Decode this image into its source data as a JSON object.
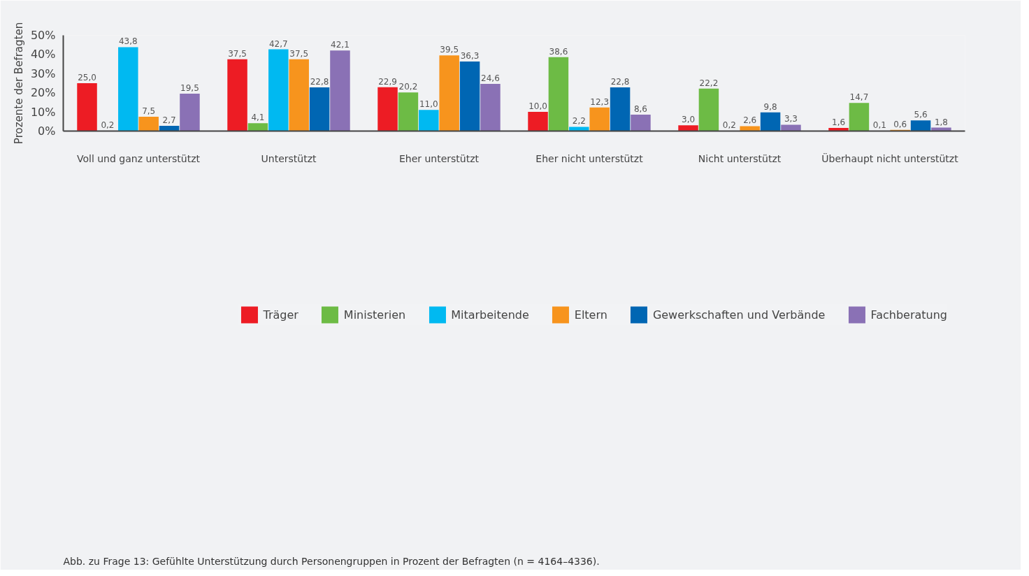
{
  "chart_data": {
    "type": "bar",
    "ylabel": "Prozente der Befragten",
    "categories": [
      "Voll und ganz unterstützt",
      "Unterstützt",
      "Eher unterstützt",
      "Eher nicht unterstützt",
      "Nicht unterstützt",
      "Überhaupt nicht unterstützt"
    ],
    "series": [
      {
        "name": "Träger",
        "color": "#ed1c24",
        "values": [
          25.0,
          37.5,
          22.9,
          10.0,
          3.0,
          1.6
        ],
        "value_labels": [
          "25,0",
          "37,5",
          "22,9",
          "10,0",
          "3,0",
          "1,6"
        ]
      },
      {
        "name": "Ministerien",
        "color": "#6dbb45",
        "values": [
          0.2,
          4.1,
          20.2,
          38.6,
          22.2,
          14.7
        ],
        "value_labels": [
          "0,2",
          "4,1",
          "20,2",
          "38,6",
          "22,2",
          "14,7"
        ]
      },
      {
        "name": "Mitarbeitende",
        "color": "#00b9f1",
        "values": [
          43.8,
          42.7,
          11.0,
          2.2,
          0.2,
          0.1
        ],
        "value_labels": [
          "43,8",
          "42,7",
          "11,0",
          "2,2",
          "0,2",
          "0,1"
        ]
      },
      {
        "name": "Eltern",
        "color": "#f7941d",
        "values": [
          7.5,
          37.5,
          39.5,
          12.3,
          2.6,
          0.6
        ],
        "value_labels": [
          "7,5",
          "37,5",
          "39,5",
          "12,3",
          "2,6",
          "0,6"
        ]
      },
      {
        "name": "Gewerkschaften und Verbände",
        "color": "#0066b3",
        "values": [
          2.7,
          22.8,
          36.3,
          22.8,
          9.8,
          5.6
        ],
        "value_labels": [
          "2,7",
          "22,8",
          "36,3",
          "22,8",
          "9,8",
          "5,6"
        ]
      },
      {
        "name": "Fachberatung",
        "color": "#8a71b5",
        "values": [
          19.5,
          42.1,
          24.6,
          8.6,
          3.3,
          1.8
        ],
        "value_labels": [
          "19,5",
          "42,1",
          "24,6",
          "8,6",
          "3,3",
          "1,8"
        ]
      }
    ],
    "ylim": [
      0,
      50
    ],
    "yticks": [
      {
        "value": 0,
        "label": "0%"
      },
      {
        "value": 10,
        "label": "10%"
      },
      {
        "value": 20,
        "label": "20%"
      },
      {
        "value": 30,
        "label": "30%"
      },
      {
        "value": 40,
        "label": "40%"
      },
      {
        "value": 50,
        "label": "50%"
      }
    ],
    "grid": false,
    "legend": "bottom",
    "annotations": [
      "Abb. zu Frage 13: Gefühlte Unterstützung durch Personengruppen in Prozent der Befragten (n = 4164–4336)."
    ]
  }
}
